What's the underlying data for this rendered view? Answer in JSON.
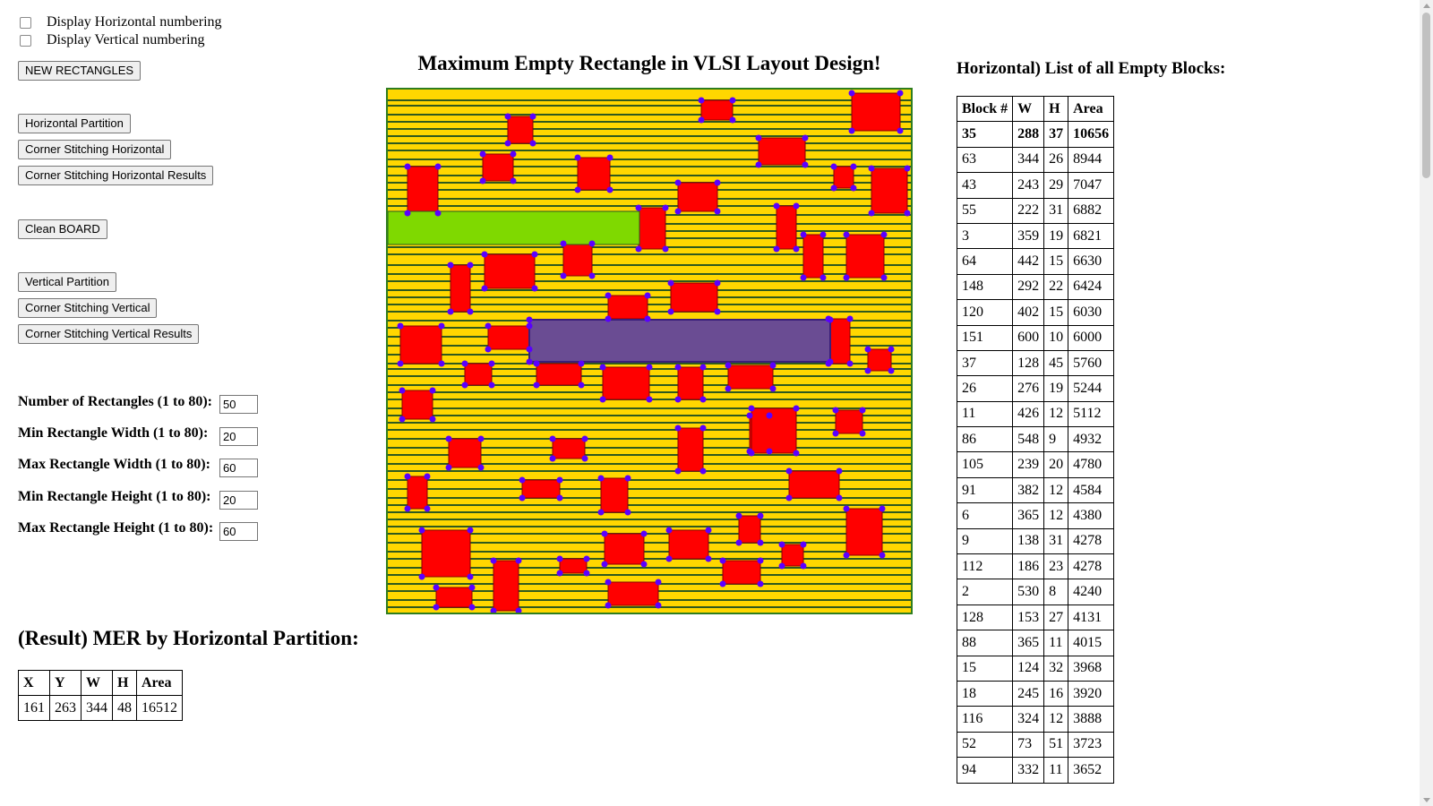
{
  "options": {
    "display_horizontal": "Display Horizontal numbering",
    "display_vertical": "Display Vertical numbering"
  },
  "buttons": {
    "new_rectangles": "NEW RECTANGLES",
    "horizontal_partition": "Horizontal Partition",
    "corner_stitching_horizontal": "Corner Stitching Horizontal",
    "corner_stitching_horizontal_results": "Corner Stitching Horizontal Results",
    "clean_board": "Clean BOARD",
    "vertical_partition": "Vertical Partition",
    "corner_stitching_vertical": "Corner Stitching Vertical",
    "corner_stitching_vertical_results": "Corner Stitching Vertical Results"
  },
  "params": {
    "num_rect_label": "Number of Rectangles (1 to 80):",
    "num_rect_value": "50",
    "min_width_label": "Min Rectangle Width (1 to 80):",
    "min_width_value": "20",
    "max_width_label": "Max Rectangle Width (1 to 80):",
    "max_width_value": "60",
    "min_height_label": "Min Rectangle Height (1 to 80):",
    "min_height_value": "20",
    "max_height_label": "Max Rectangle Height (1 to 80):",
    "max_height_value": "60"
  },
  "page_title": "Maximum Empty Rectangle in VLSI Layout Design!",
  "result": {
    "heading": "(Result) MER by Horizontal Partition:",
    "headers": [
      "X",
      "Y",
      "W",
      "H",
      "Area"
    ],
    "row": [
      "161",
      "263",
      "344",
      "48",
      "16512"
    ]
  },
  "blocks": {
    "heading": "Horizontal) List of all Empty Blocks:",
    "headers": [
      "Block #",
      "W",
      "H",
      "Area"
    ],
    "rows": [
      [
        "35",
        "288",
        "37",
        "10656"
      ],
      [
        "63",
        "344",
        "26",
        "8944"
      ],
      [
        "43",
        "243",
        "29",
        "7047"
      ],
      [
        "55",
        "222",
        "31",
        "6882"
      ],
      [
        "3",
        "359",
        "19",
        "6821"
      ],
      [
        "64",
        "442",
        "15",
        "6630"
      ],
      [
        "148",
        "292",
        "22",
        "6424"
      ],
      [
        "120",
        "402",
        "15",
        "6030"
      ],
      [
        "151",
        "600",
        "10",
        "6000"
      ],
      [
        "37",
        "128",
        "45",
        "5760"
      ],
      [
        "26",
        "276",
        "19",
        "5244"
      ],
      [
        "11",
        "426",
        "12",
        "5112"
      ],
      [
        "86",
        "548",
        "9",
        "4932"
      ],
      [
        "105",
        "239",
        "20",
        "4780"
      ],
      [
        "91",
        "382",
        "12",
        "4584"
      ],
      [
        "6",
        "365",
        "12",
        "4380"
      ],
      [
        "9",
        "138",
        "31",
        "4278"
      ],
      [
        "112",
        "186",
        "23",
        "4278"
      ],
      [
        "2",
        "530",
        "8",
        "4240"
      ],
      [
        "128",
        "153",
        "27",
        "4131"
      ],
      [
        "88",
        "365",
        "11",
        "4015"
      ],
      [
        "15",
        "124",
        "32",
        "3968"
      ],
      [
        "18",
        "245",
        "16",
        "3920"
      ],
      [
        "116",
        "324",
        "12",
        "3888"
      ],
      [
        "52",
        "73",
        "51",
        "3723"
      ],
      [
        "94",
        "332",
        "11",
        "3652"
      ]
    ]
  },
  "colors": {
    "board": "#ffd700",
    "obstacle": "#ff0000",
    "green_block": "#7fd900",
    "purple_block": "#6a4c93",
    "partition_line": "#2e5a1e",
    "vertex": "#5a00ff"
  }
}
